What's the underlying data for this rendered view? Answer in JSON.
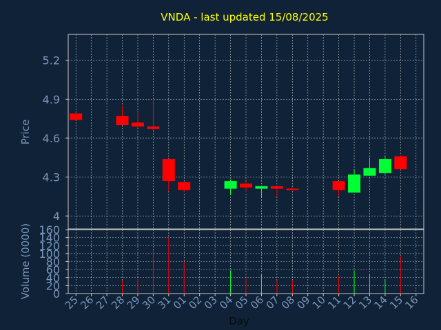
{
  "page": {
    "background": "#0f2237"
  },
  "chart_data": [
    {
      "type": "candlestick",
      "title": "VNDA - last updated 15/08/2025",
      "ylabel": "Price",
      "ylim": [
        3.9,
        5.4
      ],
      "yticks": [
        4,
        4.3,
        4.6,
        4.9,
        5.2
      ],
      "ytick_labels": [
        "4",
        "4.3",
        "4.6",
        "4.9",
        "5.2"
      ],
      "grid": true,
      "colors": {
        "up": "#00ff33",
        "down": "#ff0000",
        "axes": "#c8c8c8",
        "text": "#c8c8c8",
        "title": "#ffff00",
        "label": "#7c96b9"
      },
      "candles": [
        {
          "day": "25",
          "open": 4.79,
          "high": 4.79,
          "low": 4.74,
          "close": 4.74
        },
        {
          "day": "28",
          "open": 4.77,
          "high": 4.85,
          "low": 4.7,
          "close": 4.7
        },
        {
          "day": "29",
          "open": 4.72,
          "high": 4.8,
          "low": 4.68,
          "close": 4.69
        },
        {
          "day": "30",
          "open": 4.69,
          "high": 4.89,
          "low": 4.66,
          "close": 4.67
        },
        {
          "day": "31",
          "open": 4.44,
          "high": 4.44,
          "low": 4.19,
          "close": 4.27
        },
        {
          "day": "01",
          "open": 4.26,
          "high": 4.26,
          "low": 4.18,
          "close": 4.2
        },
        {
          "day": "04",
          "open": 4.21,
          "high": 4.28,
          "low": 4.16,
          "close": 4.27
        },
        {
          "day": "05",
          "open": 4.25,
          "high": 4.27,
          "low": 4.18,
          "close": 4.22
        },
        {
          "day": "06",
          "open": 4.21,
          "high": 4.23,
          "low": 4.14,
          "close": 4.23
        },
        {
          "day": "07",
          "open": 4.23,
          "high": 4.23,
          "low": 4.15,
          "close": 4.21
        },
        {
          "day": "08",
          "open": 4.21,
          "high": 4.22,
          "low": 4.2,
          "close": 4.2
        },
        {
          "day": "11",
          "open": 4.27,
          "high": 4.27,
          "low": 4.15,
          "close": 4.2
        },
        {
          "day": "12",
          "open": 4.18,
          "high": 4.36,
          "low": 4.18,
          "close": 4.32
        },
        {
          "day": "13",
          "open": 4.31,
          "high": 4.45,
          "low": 4.31,
          "close": 4.37
        },
        {
          "day": "14",
          "open": 4.33,
          "high": 4.46,
          "low": 4.32,
          "close": 4.44
        },
        {
          "day": "15",
          "open": 4.46,
          "high": 4.47,
          "low": 4.36,
          "close": 4.36
        }
      ]
    },
    {
      "type": "bar",
      "xlabel": "Day",
      "ylabel": "Volume (0000)",
      "ylim": [
        0,
        160
      ],
      "yticks": [
        0,
        20,
        40,
        60,
        80,
        100,
        120,
        140,
        160
      ],
      "ytick_labels": [
        "0",
        "20",
        "40",
        "60",
        "80",
        "100",
        "120",
        "140",
        "160"
      ],
      "categories": [
        "25",
        "26",
        "27",
        "28",
        "29",
        "30",
        "31",
        "01",
        "02",
        "03",
        "04",
        "05",
        "06",
        "07",
        "08",
        "09",
        "10",
        "11",
        "12",
        "13",
        "14",
        "15",
        "16"
      ],
      "values": [
        null,
        null,
        null,
        32,
        36,
        108,
        140,
        80,
        null,
        null,
        58,
        38,
        48,
        34,
        34,
        null,
        null,
        45,
        58,
        49,
        36,
        93,
        null
      ],
      "bar_colors": [
        null,
        null,
        null,
        "#ff0000",
        "#ff0000",
        "#ff0000",
        "#ff0000",
        "#ff0000",
        null,
        null,
        "#00ff33",
        "#ff0000",
        "#00ff33",
        "#ff0000",
        "#ff0000",
        null,
        null,
        "#ff0000",
        "#00ff33",
        "#00ff33",
        "#00ff33",
        "#ff0000",
        null
      ]
    }
  ]
}
